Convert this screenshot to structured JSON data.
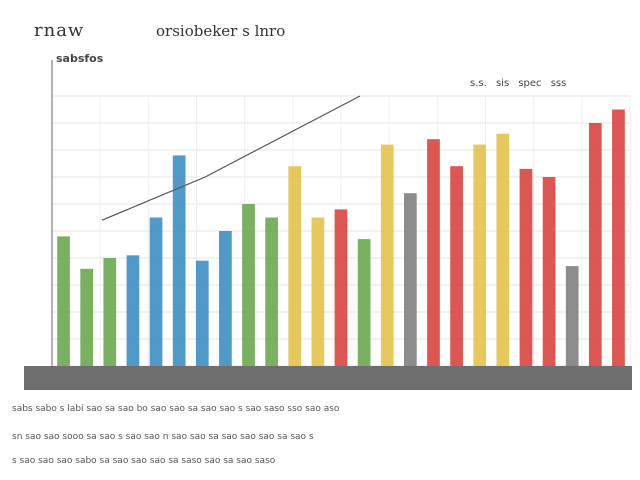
{
  "header": {
    "title_left": "rnaw",
    "title_main": "orsiobeker s lnro",
    "subtitle": "sabsfos",
    "legend_text": "s.s. sis spec sss"
  },
  "chart_data": {
    "type": "bar",
    "title": "orsiobeker s lnro",
    "xlabel": "",
    "ylabel": "",
    "ylim": [
      0,
      100
    ],
    "grid": true,
    "legend_position": "top-right",
    "colors": [
      "#6aa84f",
      "#3d8fc4",
      "#e3c24a",
      "#d9453f",
      "#7f7f7f"
    ],
    "bars": [
      {
        "value": 48,
        "color": "#6aa84f"
      },
      {
        "value": 36,
        "color": "#6aa84f"
      },
      {
        "value": 40,
        "color": "#6aa84f"
      },
      {
        "value": 41,
        "color": "#3d8fc4"
      },
      {
        "value": 55,
        "color": "#3d8fc4"
      },
      {
        "value": 78,
        "color": "#3d8fc4"
      },
      {
        "value": 39,
        "color": "#3d8fc4"
      },
      {
        "value": 50,
        "color": "#3d8fc4"
      },
      {
        "value": 60,
        "color": "#6aa84f"
      },
      {
        "value": 55,
        "color": "#6aa84f"
      },
      {
        "value": 74,
        "color": "#e3c24a"
      },
      {
        "value": 55,
        "color": "#e3c24a"
      },
      {
        "value": 58,
        "color": "#d9453f"
      },
      {
        "value": 47,
        "color": "#6aa84f"
      },
      {
        "value": 82,
        "color": "#e3c24a"
      },
      {
        "value": 64,
        "color": "#7f7f7f"
      },
      {
        "value": 84,
        "color": "#d9453f"
      },
      {
        "value": 74,
        "color": "#d9453f"
      },
      {
        "value": 82,
        "color": "#e3c24a"
      },
      {
        "value": 86,
        "color": "#e3c24a"
      },
      {
        "value": 73,
        "color": "#d9453f"
      },
      {
        "value": 70,
        "color": "#d9453f"
      },
      {
        "value": 37,
        "color": "#7f7f7f"
      },
      {
        "value": 90,
        "color": "#d9453f"
      },
      {
        "value": 95,
        "color": "#d9453f"
      }
    ],
    "line": [
      54,
      62,
      70,
      80,
      90,
      100
    ]
  },
  "footer": {
    "row1": "sabs sabo s labi sao sa sao bo sao sao sa sao sao s sao saso sso sao aso",
    "row2": "sn sao sao sooo sa sao s sao sao n sao sao sa sao sao sao sa sao s",
    "row3": "s sao sao sao sabo sa sao sao sao sa saso sao sa sao saso"
  }
}
